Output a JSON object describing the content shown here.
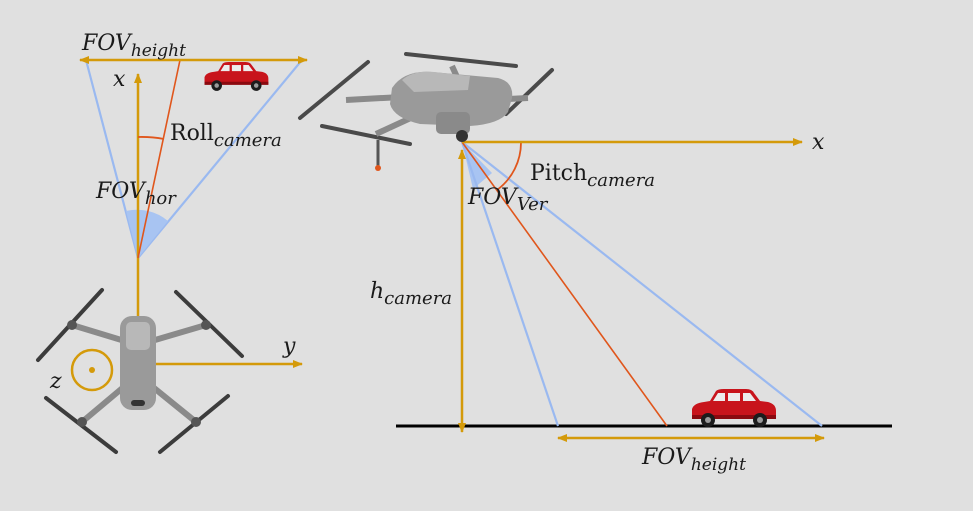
{
  "labels": {
    "fov_height_top": {
      "base": "FOV",
      "sub": "height"
    },
    "x_top": "x",
    "roll_camera": {
      "base": "Roll",
      "sub": "camera"
    },
    "fov_hor": {
      "base": "FOV",
      "sub": "hor"
    },
    "z_axis": "z",
    "y_axis": "y",
    "x_right": "x",
    "pitch_camera": {
      "base": "Pitch",
      "sub": "camera"
    },
    "fov_ver": {
      "base": "FOV",
      "sub": "Ver"
    },
    "h_camera": {
      "base": "h",
      "sub": "camera"
    },
    "fov_height_bottom": {
      "base": "FOV",
      "sub": "height"
    }
  },
  "colors": {
    "background": "#e0e0e0",
    "axis": "#d49a0a",
    "fov_ray": "#9ab9f0",
    "fov_fill": "#a8c4f2",
    "center_ray": "#e0561c",
    "ground": "#000000",
    "car_body": "#c8141c",
    "drone_body": "#9a9a9a"
  },
  "icons": {
    "top_drone": "quadcopter-top-view-icon",
    "side_drone": "quadcopter-side-view-icon",
    "top_car": "red-car-icon",
    "ground_car": "red-car-icon"
  }
}
